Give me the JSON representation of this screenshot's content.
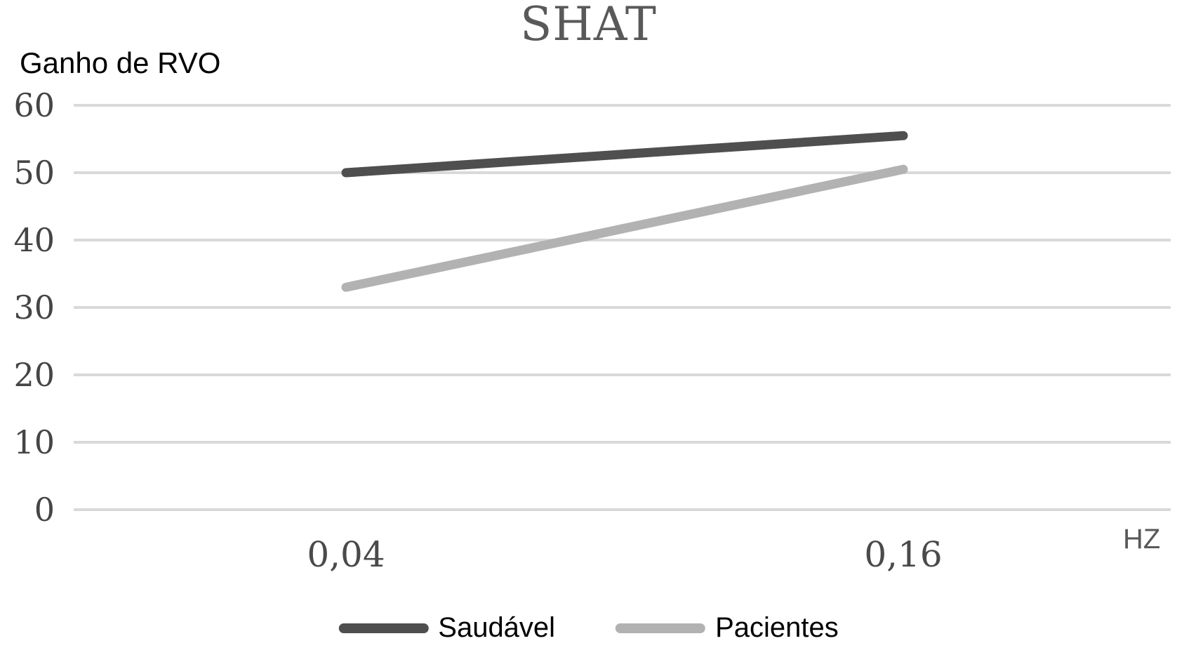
{
  "page": {
    "background": "#ffffff"
  },
  "chart_data": {
    "type": "line",
    "title": "SHAT",
    "y_axis_label": "Ganho de RVO",
    "x_axis_label": "HZ",
    "categories": [
      "0,04",
      "0,16"
    ],
    "x_values": [
      0.04,
      0.16
    ],
    "series": [
      {
        "name": "Saudável",
        "values": [
          50,
          55.5
        ],
        "color": "#4f4f4f"
      },
      {
        "name": "Pacientes",
        "values": [
          33,
          50.5
        ],
        "color": "#b2b2b2"
      }
    ],
    "ylim": [
      0,
      60
    ],
    "y_ticks": [
      "0",
      "10",
      "20",
      "30",
      "40",
      "50",
      "60"
    ],
    "grid": "horizontal",
    "gridline_color": "#d9d9d9",
    "tick_color": "#454545",
    "title_color": "#595959",
    "legend_position": "bottom"
  }
}
